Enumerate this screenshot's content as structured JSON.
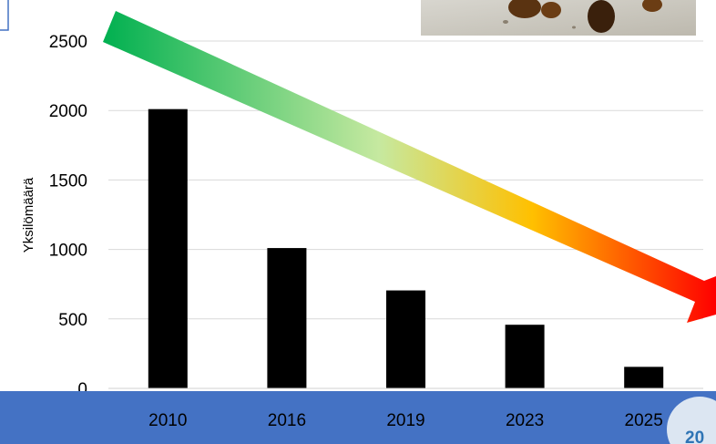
{
  "chart_data": {
    "type": "bar",
    "categories": [
      "2010",
      "2016",
      "2019",
      "2023",
      "2025"
    ],
    "values": [
      2010,
      1010,
      705,
      458,
      155
    ],
    "xlabel": "",
    "ylabel": "Yksilömäärä",
    "ylim": [
      0,
      2500
    ],
    "yticks": [
      0,
      500,
      1000,
      1500,
      2000,
      2500
    ],
    "grid": true,
    "bar_color": "#000000",
    "trend_arrow": {
      "direction": "decreasing",
      "colors": [
        "#00b050",
        "#c6e9a0",
        "#ffc000",
        "#ff0000"
      ]
    }
  },
  "footer": {
    "page_number": "20",
    "band_color": "#4472c4"
  }
}
